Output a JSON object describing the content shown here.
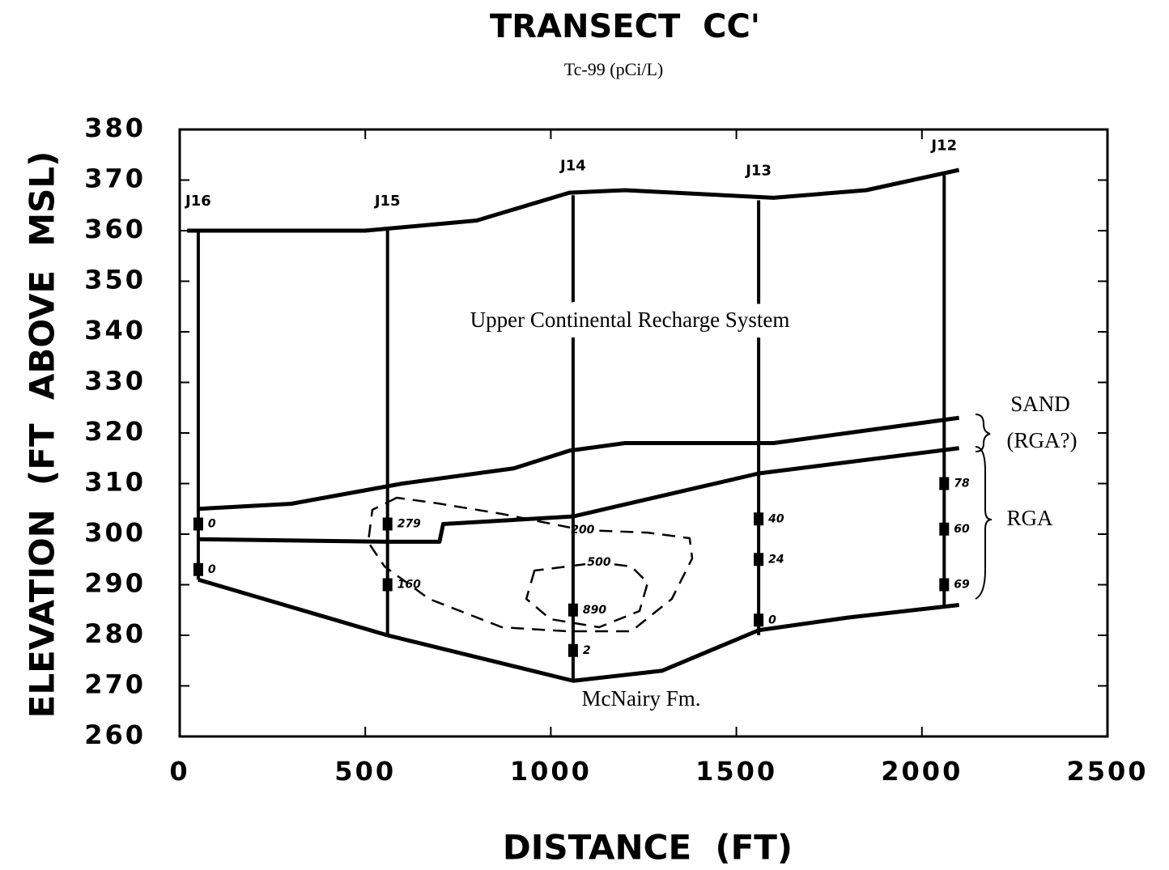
{
  "chart_data": {
    "type": "cross-section",
    "title": "TRANSECT  CC'",
    "subtitle": "Tc-99 (pCi/L)",
    "x_label": "DISTANCE  (FT)",
    "y_label": "ELEVATION  (FT  ABOVE  MSL)",
    "xlim": [
      0,
      2500
    ],
    "ylim": [
      260,
      380
    ],
    "xticks": [
      0,
      500,
      1000,
      1500,
      2000,
      2500
    ],
    "yticks": [
      260,
      270,
      280,
      290,
      300,
      310,
      320,
      330,
      340,
      350,
      360,
      370,
      380
    ],
    "units": [
      "Upper Continental Recharge System",
      "McNairy Fm.",
      "SAND",
      "(RGA?)",
      "RGA"
    ],
    "wells": [
      {
        "name": "J16",
        "x": 50,
        "top": 360,
        "bottom": 291,
        "samples": [
          {
            "elevation": 302,
            "value": 0
          },
          {
            "elevation": 293,
            "value": 0
          }
        ]
      },
      {
        "name": "J15",
        "x": 560,
        "top": 360,
        "bottom": 280,
        "samples": [
          {
            "elevation": 302,
            "value": 279
          },
          {
            "elevation": 290,
            "value": 160
          }
        ]
      },
      {
        "name": "J14",
        "x": 1060,
        "top": 367,
        "bottom": 271,
        "samples": [
          {
            "elevation": 285,
            "value": 890
          },
          {
            "elevation": 277,
            "value": 2
          }
        ]
      },
      {
        "name": "J13",
        "x": 1560,
        "top": 366,
        "bottom": 280,
        "samples": [
          {
            "elevation": 303,
            "value": 40
          },
          {
            "elevation": 295,
            "value": 24
          },
          {
            "elevation": 283,
            "value": 0
          }
        ]
      },
      {
        "name": "J12",
        "x": 2060,
        "top": 371,
        "bottom": 286,
        "samples": [
          {
            "elevation": 310,
            "value": 78
          },
          {
            "elevation": 301,
            "value": 60
          },
          {
            "elevation": 290,
            "value": 69
          }
        ]
      }
    ],
    "surfaces": [
      {
        "x": [
          20,
          500,
          800,
          1050,
          1200,
          1600,
          1850,
          2100
        ],
        "y": [
          360,
          360,
          362,
          367.5,
          368,
          366.5,
          368,
          372
        ]
      },
      {
        "x": [
          50,
          300,
          600,
          900,
          1050,
          1200,
          1600,
          2100
        ],
        "y": [
          305,
          306,
          310,
          313,
          316.5,
          318,
          318,
          323
        ]
      },
      {
        "x": [
          50,
          560,
          700,
          710,
          1060,
          1560,
          2100
        ],
        "y": [
          299,
          298.5,
          298.5,
          302,
          303.5,
          312,
          317
        ]
      },
      {
        "x": [
          50,
          560,
          1060,
          1300,
          1560,
          1800,
          2100
        ],
        "y": [
          291,
          280,
          271,
          273,
          281,
          283.5,
          286
        ]
      }
    ],
    "contours": [
      {
        "value": 200,
        "x": [
          585,
          519,
          508,
          552,
          672,
          868,
          1043,
          1217,
          1326,
          1381,
          1374,
          1261,
          1086,
          868,
          694
        ],
        "y": [
          307.2,
          304.8,
          298.4,
          293.6,
          287.2,
          281.6,
          280.8,
          280.8,
          287.2,
          295.2,
          299.2,
          300.3,
          300.8,
          304,
          306.1
        ]
      },
      {
        "value": 500,
        "x": [
          956,
          934,
          999,
          1130,
          1239,
          1261,
          1217,
          1130
        ],
        "y": [
          292.8,
          287.2,
          283.2,
          281.6,
          284.8,
          290.4,
          293.6,
          294.4
        ]
      }
    ]
  }
}
